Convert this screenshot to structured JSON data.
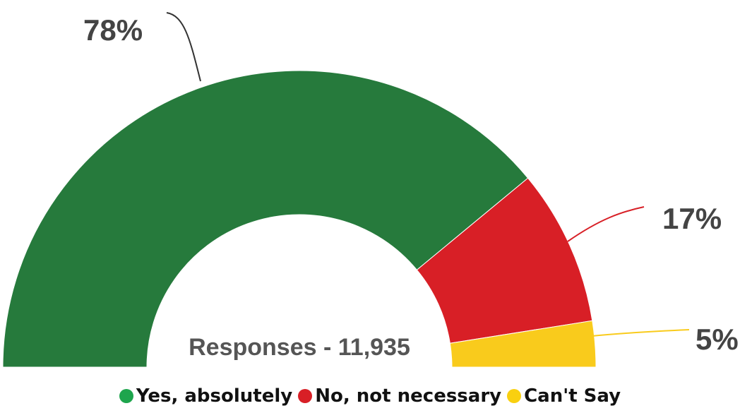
{
  "chart_data": {
    "type": "pie",
    "subtype": "semi-donut",
    "center_label": "Responses - 11,935",
    "categories": [
      "Yes, absolutely",
      "No, not necessary",
      "Can't Say"
    ],
    "values": [
      78,
      17,
      5
    ],
    "value_labels": [
      "78%",
      "17%",
      "5%"
    ],
    "colors": [
      "#267A3C",
      "#D81F26",
      "#F9CB1C"
    ],
    "legend_dot_colors": [
      "#1EA54D",
      "#D81F26",
      "#F9D010"
    ],
    "legend_position": "bottom"
  }
}
